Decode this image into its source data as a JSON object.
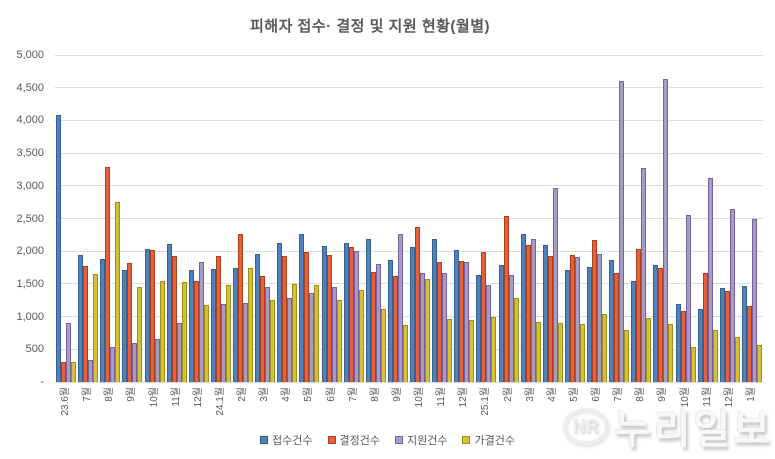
{
  "title": "피해자 접수· 결정 및 지원 현황(월별)",
  "watermark": {
    "logo": "NR",
    "text": "누리일보"
  },
  "chart_data": {
    "type": "bar",
    "title": "피해자 접수· 결정 및 지원 현황(월별)",
    "ylim": [
      0,
      5000
    ],
    "y_tick_step": 500,
    "y_ticks": [
      "5,000",
      "4,500",
      "4,000",
      "3,500",
      "3,000",
      "2,500",
      "2,000",
      "1,500",
      "1,000",
      "500",
      "-"
    ],
    "grid": true,
    "legend_position": "bottom",
    "categories": [
      "23.6월",
      "7월",
      "8월",
      "9월",
      "10월",
      "11월",
      "12월",
      "24.1월",
      "2월",
      "3월",
      "4월",
      "5월",
      "6월",
      "7월",
      "8월",
      "9월",
      "10월",
      "11월",
      "12월",
      "25.1월",
      "2월",
      "3월",
      "4월",
      "5월",
      "6월",
      "7월",
      "8월",
      "9월",
      "10월",
      "11월",
      "12월",
      "1월"
    ],
    "series": [
      {
        "id": "received-cases",
        "name": "접수건수",
        "fill": "#4F81BD",
        "border": "#38618F",
        "values": [
          4080,
          1940,
          1880,
          1720,
          2030,
          2110,
          1710,
          1730,
          1740,
          1950,
          2130,
          2260,
          2080,
          2130,
          2190,
          1860,
          2070,
          2180,
          2020,
          1630,
          1790,
          2270,
          2090,
          1710,
          1760,
          1870,
          1540,
          1790,
          1190,
          1120,
          1440,
          1470
        ]
      },
      {
        "id": "decided-cases",
        "name": "결정건수",
        "fill": "#E8603A",
        "border": "#AC3F1E",
        "values": [
          310,
          1780,
          3290,
          1820,
          2020,
          1930,
          1550,
          1930,
          2270,
          1620,
          1920,
          1990,
          1940,
          2060,
          1680,
          1620,
          2370,
          1840,
          1850,
          1990,
          2540,
          2090,
          1930,
          1940,
          2170,
          1660,
          2030,
          1740,
          1080,
          1660,
          1390,
          1160
        ]
      },
      {
        "id": "supported-cases",
        "name": "지원건수",
        "fill": "#A79CC8",
        "border": "#75619B",
        "values": [
          900,
          330,
          530,
          590,
          660,
          900,
          1840,
          1190,
          1210,
          1450,
          1280,
          1360,
          1460,
          2000,
          1810,
          2270,
          1670,
          1660,
          1830,
          1490,
          1630,
          2190,
          2960,
          1910,
          1960,
          4600,
          3280,
          4630,
          2550,
          3120,
          2650,
          2490
        ]
      },
      {
        "id": "approved-cases",
        "name": "가결건수",
        "fill": "#D6C135",
        "border": "#9C8F1B",
        "values": [
          310,
          1650,
          2750,
          1450,
          1540,
          1530,
          1170,
          1490,
          1740,
          1250,
          1500,
          1490,
          1250,
          1410,
          1120,
          870,
          1580,
          970,
          950,
          1000,
          1290,
          920,
          910,
          890,
          1040,
          790,
          980,
          880,
          530,
          790,
          690,
          570
        ]
      }
    ]
  }
}
